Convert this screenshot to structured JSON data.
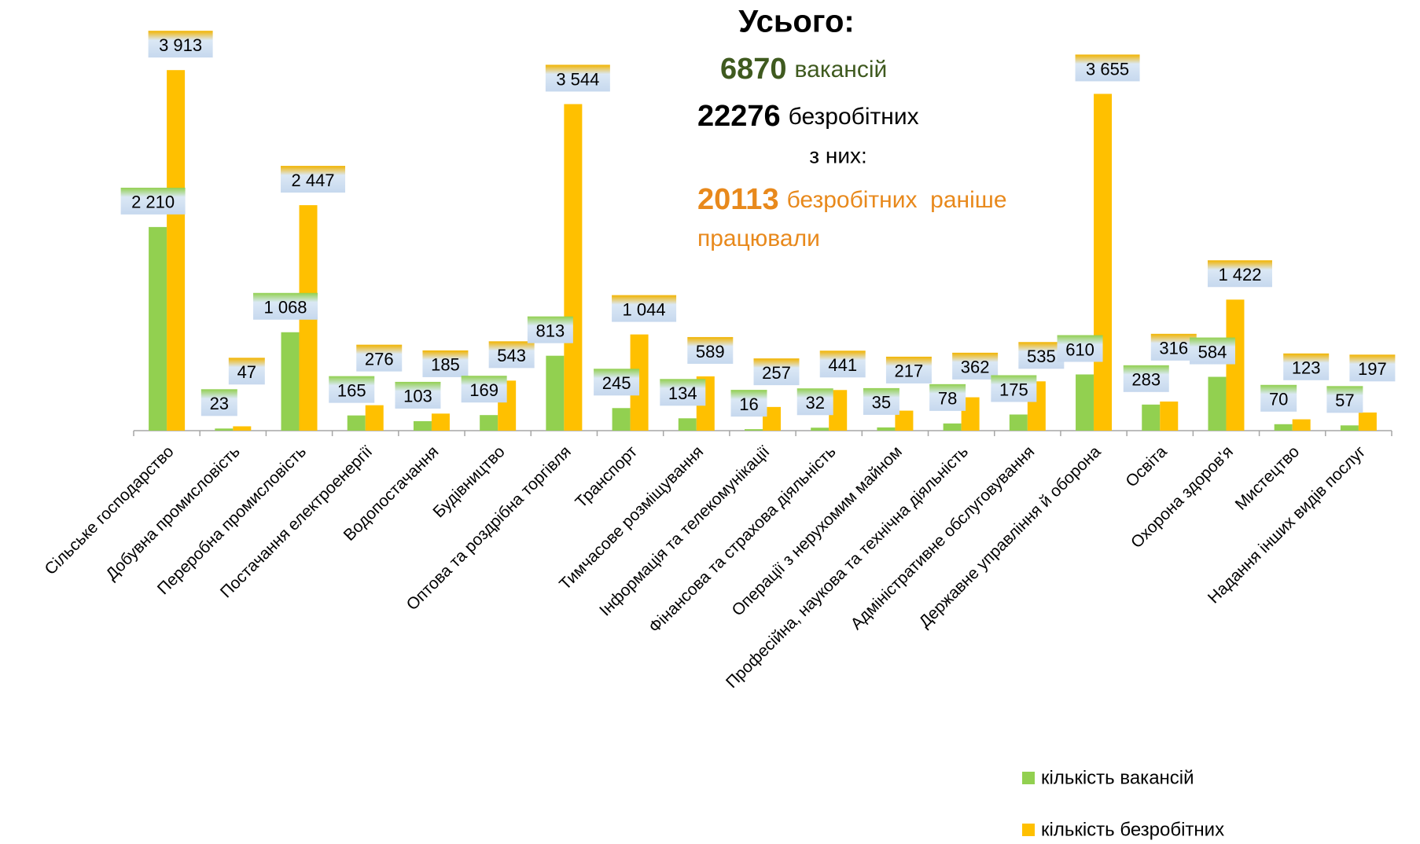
{
  "chart_data": {
    "type": "bar",
    "categories": [
      "Сільське господарство",
      "Добувна промисловість",
      "Переробна промисловість",
      "Постачання електроенергії",
      "Водопостачання",
      "Будівництво",
      "Оптова та роздрібна торгівля",
      "Транспорт",
      "Тимчасове розміщування",
      "Інформація та телекомунікації",
      "Фінансова та страхова діяльність",
      "Операції з нерухомим майном",
      "Професійна, наукова та технічна діяльність",
      "Адміністративне обслуговування",
      "Державне управління й оборона",
      "Освіта",
      "Охорона здоров'я",
      "Мистецтво",
      "Надання інших видів послуг"
    ],
    "series": [
      {
        "name": "кількість вакансій",
        "color": "#92d050",
        "values": [
          2210,
          23,
          1068,
          165,
          103,
          169,
          813,
          245,
          134,
          16,
          32,
          35,
          78,
          175,
          610,
          283,
          584,
          70,
          57
        ],
        "value_labels": [
          "2 210",
          "23",
          "1 068",
          "165",
          "103",
          "169",
          "813",
          "245",
          "134",
          "16",
          "32",
          "35",
          "78",
          "175",
          "610",
          "283",
          "584",
          "70",
          "57"
        ]
      },
      {
        "name": "кількість безробітних",
        "color": "#ffc000",
        "values": [
          3913,
          47,
          2447,
          276,
          185,
          543,
          3544,
          1044,
          589,
          257,
          441,
          217,
          362,
          535,
          3655,
          316,
          1422,
          123,
          197
        ],
        "value_labels": [
          "3 913",
          "47",
          "2 447",
          "276",
          "185",
          "543",
          "3 544",
          "1 044",
          "589",
          "257",
          "441",
          "217",
          "362",
          "535",
          "3 655",
          "316",
          "1 422",
          "123",
          "197"
        ]
      }
    ],
    "ylim": [
      0,
      4000
    ],
    "annotation": {
      "heading": "Усього:",
      "vacancies_number": "6870",
      "vacancies_text": "вакансій",
      "unemployed_number": "22276",
      "unemployed_text": "безробітних",
      "of_them": "з них:",
      "previously_number": "20113",
      "previously_text": "безробітних  раніше",
      "previously_text_2": "працювали"
    }
  }
}
